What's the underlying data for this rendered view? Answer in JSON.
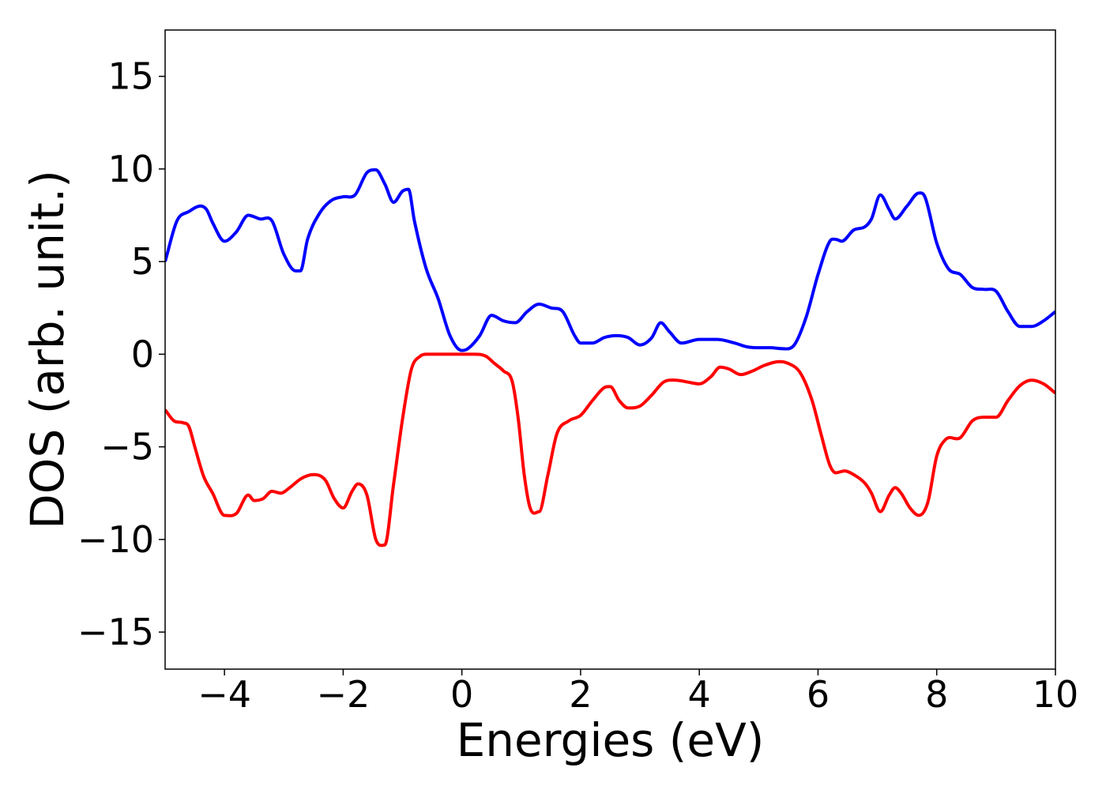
{
  "chart_data": {
    "type": "line",
    "title": "",
    "xlabel": "Energies (eV)",
    "ylabel": "DOS (arb. unit.)",
    "xlim": [
      -5,
      10
    ],
    "ylim": [
      -17,
      17.5
    ],
    "xticks": [
      -4,
      -2,
      0,
      2,
      4,
      6,
      8,
      10
    ],
    "yticks": [
      -15,
      -10,
      -5,
      0,
      5,
      10,
      15
    ],
    "xtick_labels": [
      "−4",
      "−2",
      "0",
      "2",
      "4",
      "6",
      "8",
      "10"
    ],
    "ytick_labels": [
      "−15",
      "−10",
      "−5",
      "0",
      "5",
      "10",
      "15"
    ],
    "grid": false,
    "legend": "none",
    "series": [
      {
        "color": "#0000ff",
        "x": [
          -5.0,
          -4.8,
          -4.6,
          -4.4,
          -4.3,
          -4.2,
          -4.0,
          -3.8,
          -3.6,
          -3.4,
          -3.2,
          -3.0,
          -2.8,
          -2.72,
          -2.6,
          -2.4,
          -2.2,
          -2.0,
          -1.8,
          -1.6,
          -1.45,
          -1.3,
          -1.15,
          -1.0,
          -0.9,
          -0.8,
          -0.6,
          -0.4,
          -0.2,
          0.0,
          0.1,
          0.3,
          0.5,
          0.7,
          0.9,
          1.1,
          1.3,
          1.5,
          1.7,
          1.9,
          2.0,
          2.2,
          2.4,
          2.6,
          2.8,
          3.0,
          3.2,
          3.35,
          3.5,
          3.7,
          4.0,
          4.3,
          4.6,
          4.8,
          5.0,
          5.2,
          5.4,
          5.6,
          5.8,
          6.0,
          6.2,
          6.3,
          6.4,
          6.6,
          6.8,
          6.9,
          7.05,
          7.2,
          7.3,
          7.5,
          7.7,
          7.8,
          8.0,
          8.2,
          8.4,
          8.6,
          8.8,
          9.0,
          9.2,
          9.4,
          9.6,
          9.8,
          10.0
        ],
        "y": [
          5.0,
          7.2,
          7.7,
          8.0,
          7.8,
          7.1,
          6.1,
          6.6,
          7.5,
          7.3,
          7.2,
          5.4,
          4.5,
          4.5,
          6.2,
          7.6,
          8.3,
          8.5,
          8.6,
          9.8,
          9.95,
          9.2,
          8.2,
          8.8,
          8.9,
          7.2,
          4.6,
          3.0,
          1.0,
          0.2,
          0.3,
          1.0,
          2.1,
          1.8,
          1.7,
          2.3,
          2.7,
          2.5,
          2.3,
          1.0,
          0.6,
          0.6,
          0.9,
          1.0,
          0.9,
          0.5,
          0.9,
          1.7,
          1.2,
          0.6,
          0.8,
          0.8,
          0.6,
          0.4,
          0.35,
          0.35,
          0.3,
          0.5,
          2.0,
          4.3,
          6.1,
          6.2,
          6.1,
          6.7,
          6.9,
          7.3,
          8.6,
          7.8,
          7.3,
          8.0,
          8.7,
          8.5,
          6.0,
          4.6,
          4.3,
          3.6,
          3.5,
          3.4,
          2.3,
          1.5,
          1.5,
          1.8,
          2.3
        ]
      },
      {
        "color": "#ff0000",
        "x": [
          -5.0,
          -4.85,
          -4.7,
          -4.6,
          -4.5,
          -4.35,
          -4.2,
          -4.0,
          -3.8,
          -3.6,
          -3.5,
          -3.35,
          -3.2,
          -3.05,
          -2.9,
          -2.7,
          -2.5,
          -2.3,
          -2.15,
          -2.0,
          -1.85,
          -1.75,
          -1.6,
          -1.45,
          -1.3,
          -1.15,
          -1.0,
          -0.85,
          -0.7,
          -0.6,
          -0.4,
          -0.2,
          0.0,
          0.2,
          0.4,
          0.55,
          0.7,
          0.85,
          0.95,
          1.05,
          1.15,
          1.3,
          1.45,
          1.6,
          1.8,
          2.0,
          2.2,
          2.4,
          2.5,
          2.65,
          2.8,
          3.0,
          3.2,
          3.4,
          3.6,
          3.8,
          4.0,
          4.2,
          4.35,
          4.5,
          4.7,
          4.9,
          5.1,
          5.35,
          5.5,
          5.7,
          5.9,
          6.05,
          6.2,
          6.3,
          6.45,
          6.6,
          6.8,
          6.9,
          7.05,
          7.2,
          7.3,
          7.4,
          7.55,
          7.7,
          7.85,
          8.0,
          8.15,
          8.4,
          8.6,
          8.8,
          9.0,
          9.2,
          9.4,
          9.6,
          9.8,
          10.0
        ],
        "y": [
          -3.0,
          -3.6,
          -3.7,
          -3.9,
          -5.0,
          -6.6,
          -7.5,
          -8.7,
          -8.6,
          -7.6,
          -7.9,
          -7.8,
          -7.4,
          -7.5,
          -7.2,
          -6.7,
          -6.5,
          -6.8,
          -7.8,
          -8.3,
          -7.4,
          -7.0,
          -7.6,
          -10.0,
          -10.3,
          -7.0,
          -3.5,
          -0.8,
          -0.1,
          0.0,
          0.0,
          0.0,
          0.0,
          0.0,
          -0.1,
          -0.5,
          -0.9,
          -1.5,
          -3.5,
          -6.5,
          -8.3,
          -8.5,
          -6.5,
          -4.3,
          -3.6,
          -3.3,
          -2.5,
          -1.8,
          -1.75,
          -2.5,
          -2.9,
          -2.8,
          -2.2,
          -1.5,
          -1.4,
          -1.5,
          -1.6,
          -1.2,
          -0.7,
          -0.8,
          -1.1,
          -0.9,
          -0.6,
          -0.4,
          -0.5,
          -1.0,
          -2.5,
          -4.3,
          -6.0,
          -6.4,
          -6.3,
          -6.5,
          -7.0,
          -7.5,
          -8.5,
          -7.6,
          -7.2,
          -7.5,
          -8.3,
          -8.7,
          -8.0,
          -5.5,
          -4.6,
          -4.5,
          -3.6,
          -3.4,
          -3.4,
          -2.5,
          -1.7,
          -1.4,
          -1.6,
          -2.1
        ]
      }
    ]
  }
}
